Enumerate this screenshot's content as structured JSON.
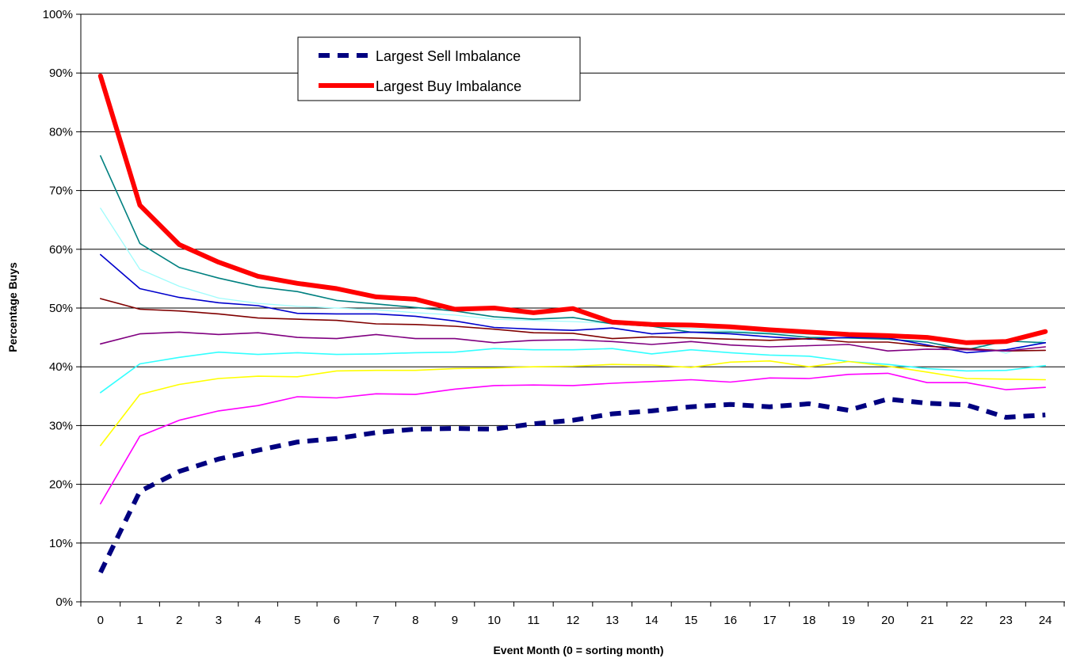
{
  "chart_data": {
    "type": "line",
    "title": "",
    "xlabel": "Event Month (0 = sorting month)",
    "ylabel": "Percentage Buys",
    "x": [
      0,
      1,
      2,
      3,
      4,
      5,
      6,
      7,
      8,
      9,
      10,
      11,
      12,
      13,
      14,
      15,
      16,
      17,
      18,
      19,
      20,
      21,
      22,
      23,
      24
    ],
    "ylim": [
      0,
      100
    ],
    "yticks": [
      "0%",
      "10%",
      "20%",
      "30%",
      "40%",
      "50%",
      "60%",
      "70%",
      "80%",
      "90%",
      "100%"
    ],
    "xticks": [
      "0",
      "1",
      "2",
      "3",
      "4",
      "5",
      "6",
      "7",
      "8",
      "9",
      "10",
      "11",
      "12",
      "13",
      "14",
      "15",
      "16",
      "17",
      "18",
      "19",
      "20",
      "21",
      "22",
      "23",
      "24"
    ],
    "grid": "horizontal",
    "legend_position": "top-left",
    "series": [
      {
        "name": "",
        "color": "#9ffcfc",
        "width": 1.3,
        "style": "solid",
        "values": [
          67.0,
          56.6,
          53.7,
          51.7,
          50.8,
          50.3,
          50.0,
          49.7,
          49.2,
          48.8,
          48.1,
          47.9,
          47.7,
          47.4,
          46.9,
          46.5,
          46.1,
          45.8,
          45.5,
          45.3,
          45.1,
          44.8,
          44.3,
          42.3,
          44.6
        ]
      },
      {
        "name": "",
        "color": "#008080",
        "width": 1.6,
        "style": "solid",
        "values": [
          75.9,
          61.0,
          56.9,
          55.1,
          53.6,
          52.8,
          51.3,
          50.7,
          50.1,
          49.5,
          48.5,
          48.1,
          48.4,
          47.3,
          46.9,
          45.9,
          45.9,
          45.6,
          45.0,
          44.9,
          44.7,
          44.2,
          42.9,
          44.4,
          44.1
        ]
      },
      {
        "name": "",
        "color": "#0000cc",
        "width": 1.6,
        "style": "solid",
        "values": [
          59.1,
          53.3,
          51.8,
          50.9,
          50.4,
          49.1,
          49.0,
          49.0,
          48.6,
          47.8,
          46.7,
          46.4,
          46.2,
          46.6,
          45.6,
          45.9,
          45.6,
          45.1,
          44.7,
          45.0,
          44.9,
          43.7,
          42.4,
          42.9,
          44.1
        ]
      },
      {
        "name": "",
        "color": "#800000",
        "width": 1.6,
        "style": "solid",
        "values": [
          51.6,
          49.8,
          49.5,
          49.0,
          48.3,
          48.1,
          47.9,
          47.3,
          47.2,
          46.9,
          46.4,
          45.8,
          45.7,
          44.8,
          45.1,
          44.9,
          44.7,
          44.5,
          44.8,
          44.2,
          44.2,
          43.5,
          43.1,
          42.7,
          42.8
        ]
      },
      {
        "name": "",
        "color": "#800080",
        "width": 1.6,
        "style": "solid",
        "values": [
          43.9,
          45.6,
          45.9,
          45.5,
          45.8,
          45.0,
          44.8,
          45.5,
          44.8,
          44.8,
          44.1,
          44.5,
          44.6,
          44.3,
          43.8,
          44.3,
          43.7,
          43.4,
          43.6,
          43.8,
          42.7,
          43.0,
          42.9,
          42.7,
          43.4
        ]
      },
      {
        "name": "",
        "color": "#33ffff",
        "width": 1.6,
        "style": "solid",
        "values": [
          35.6,
          40.5,
          41.6,
          42.5,
          42.1,
          42.4,
          42.1,
          42.2,
          42.4,
          42.5,
          43.1,
          42.9,
          42.9,
          43.1,
          42.2,
          42.9,
          42.4,
          42.0,
          41.8,
          40.9,
          40.4,
          39.7,
          39.3,
          39.4,
          40.2
        ]
      },
      {
        "name": "",
        "color": "#ffff00",
        "width": 1.6,
        "style": "solid",
        "values": [
          26.6,
          35.3,
          37.0,
          38.0,
          38.4,
          38.3,
          39.3,
          39.4,
          39.4,
          39.7,
          39.8,
          40.0,
          40.1,
          40.4,
          40.3,
          39.9,
          40.8,
          41.0,
          40.0,
          40.9,
          40.1,
          39.1,
          38.0,
          37.9,
          37.8
        ]
      },
      {
        "name": "",
        "color": "#ff00ff",
        "width": 1.6,
        "style": "solid",
        "values": [
          16.7,
          28.2,
          30.9,
          32.5,
          33.4,
          34.9,
          34.7,
          35.4,
          35.3,
          36.2,
          36.8,
          36.9,
          36.8,
          37.2,
          37.5,
          37.8,
          37.4,
          38.1,
          38.0,
          38.7,
          38.9,
          37.3,
          37.3,
          36.1,
          36.5
        ]
      },
      {
        "name": "Largest Sell Imbalance",
        "color": "#000080",
        "width": 6,
        "style": "dashed",
        "values": [
          5.0,
          18.8,
          22.2,
          24.3,
          25.8,
          27.2,
          27.8,
          28.8,
          29.4,
          29.5,
          29.4,
          30.3,
          30.9,
          32.0,
          32.5,
          33.2,
          33.6,
          33.2,
          33.7,
          32.6,
          34.5,
          33.8,
          33.5,
          31.4,
          31.8
        ]
      },
      {
        "name": "Largest Buy Imbalance",
        "color": "#ff0000",
        "width": 6,
        "style": "solid",
        "values": [
          89.5,
          67.5,
          60.8,
          57.8,
          55.4,
          54.2,
          53.3,
          51.9,
          51.5,
          49.8,
          50.0,
          49.2,
          49.9,
          47.6,
          47.2,
          47.1,
          46.8,
          46.3,
          45.9,
          45.5,
          45.3,
          45.0,
          44.1,
          44.3,
          46.0
        ]
      }
    ],
    "legend": [
      {
        "name": "Largest Sell Imbalance",
        "color": "#000080",
        "style": "dashed"
      },
      {
        "name": "Largest Buy Imbalance",
        "color": "#ff0000",
        "style": "solid"
      }
    ]
  }
}
